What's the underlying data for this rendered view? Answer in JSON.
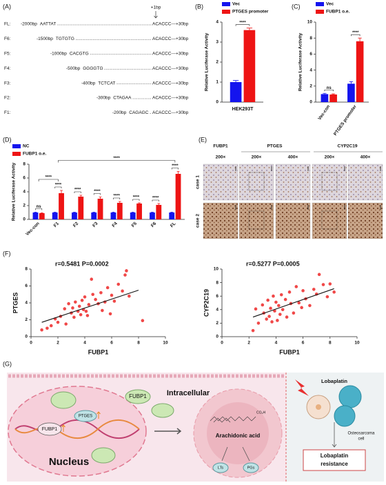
{
  "panel_labels": [
    "(A)",
    "(B)",
    "(C)",
    "(D)",
    "(E)",
    "(F)",
    "(G)"
  ],
  "promoter": {
    "marker": "+1bp",
    "rows": [
      {
        "name": "FL:",
        "start": "-2000bp",
        "seq": "AATTAT",
        "end": "ACACCC---+30bp"
      },
      {
        "name": "F6:",
        "start": "-1500bp",
        "seq": "TGTGTG",
        "end": "ACACCC---+30bp"
      },
      {
        "name": "F5:",
        "start": "-1000bp",
        "seq": "CACGTG",
        "end": "ACACCC---+30bp"
      },
      {
        "name": "F4:",
        "start": "-500bp",
        "seq": "GGGGTG",
        "end": "ACACCC---+30bp"
      },
      {
        "name": "F3:",
        "start": "-400bp",
        "seq": "TCTCAT",
        "end": "ACACCC---+30bp"
      },
      {
        "name": "F2:",
        "start": "-300bp",
        "seq": "CTAGAA",
        "end": "ACACCC---+30bp"
      },
      {
        "name": "F1:",
        "start": "-200bp",
        "seq": "CAGAGC",
        "end": "ACACCC---+30bp"
      }
    ]
  },
  "chart_data": [
    {
      "type": "bar",
      "ylabel": "Relative Luciferase Activity",
      "categories": [
        "HEK293T"
      ],
      "series": [
        {
          "name": "Vec",
          "color": "#1414ee",
          "values": [
            1.0
          ],
          "errors": [
            0.08
          ]
        },
        {
          "name": "PTGES promoter",
          "color": "#ee1414",
          "values": [
            3.6
          ],
          "errors": [
            0.1
          ]
        }
      ],
      "ylim": [
        0,
        4
      ],
      "yticks": [
        0,
        1,
        2,
        3,
        4
      ],
      "annotations": [
        "****"
      ]
    },
    {
      "type": "bar",
      "ylabel": "Relative Luciferase Activity",
      "categories": [
        "Vec-con",
        "PTGES promoter"
      ],
      "series": [
        {
          "name": "Vec",
          "color": "#1414ee",
          "values": [
            1.0,
            2.3
          ],
          "errors": [
            0.1,
            0.25
          ]
        },
        {
          "name": "FUBP1 o.e.",
          "color": "#ee1414",
          "values": [
            0.95,
            7.6
          ],
          "errors": [
            0.08,
            0.4
          ]
        }
      ],
      "ylim": [
        0,
        10
      ],
      "yticks": [
        0,
        2,
        4,
        6,
        8,
        10
      ],
      "annotations": [
        "ns",
        "****"
      ]
    },
    {
      "type": "bar",
      "ylabel": "Relative Luciferase Activity",
      "categories": [
        "Vec-con",
        "F1",
        "F2",
        "F3",
        "F4",
        "F5",
        "F6",
        "FL"
      ],
      "series": [
        {
          "name": "NC",
          "color": "#1414ee",
          "values": [
            1,
            1,
            1,
            1,
            1,
            1,
            1,
            1
          ],
          "errors": [
            0.05,
            0.05,
            0.05,
            0.05,
            0.05,
            0.05,
            0.05,
            0.05
          ]
        },
        {
          "name": "FUBP1 o.e.",
          "color": "#ee1414",
          "values": [
            0.9,
            3.8,
            3.3,
            3.0,
            2.4,
            2.3,
            2.1,
            6.6
          ],
          "errors": [
            0.05,
            0.4,
            0.2,
            0.25,
            0.2,
            0.1,
            0.2,
            0.35
          ]
        }
      ],
      "ylim": [
        0,
        8
      ],
      "yticks": [
        0,
        2,
        4,
        6,
        8
      ],
      "annotations": [
        "ns",
        "****",
        "****",
        "****",
        "****",
        "****",
        "****",
        "****"
      ],
      "comparison_labels": [
        "****",
        "****"
      ]
    },
    {
      "type": "scatter",
      "annotation": "r=0.5481   P=0.0002",
      "xlabel": "FUBP1",
      "ylabel": "PTGES",
      "color": "#f04848",
      "x": [
        0.8,
        1.2,
        1.5,
        1.8,
        2.0,
        2.2,
        2.5,
        2.6,
        2.8,
        3.0,
        3.1,
        3.2,
        3.3,
        3.5,
        3.6,
        3.7,
        3.8,
        3.9,
        4.0,
        4.1,
        4.2,
        4.3,
        4.5,
        4.6,
        4.8,
        5.0,
        5.2,
        5.3,
        5.5,
        5.7,
        5.9,
        6.0,
        6.2,
        6.5,
        6.8,
        7.0,
        7.1,
        7.3,
        8.3
      ],
      "values": [
        0.8,
        1.0,
        1.3,
        2.1,
        1.7,
        2.4,
        3.3,
        1.5,
        3.9,
        2.8,
        3.4,
        2.3,
        4.1,
        3.0,
        3.6,
        2.6,
        4.3,
        3.2,
        4.7,
        3.0,
        2.5,
        3.8,
        6.8,
        5.0,
        4.4,
        3.9,
        5.2,
        3.1,
        4.1,
        5.8,
        2.7,
        4.9,
        4.2,
        6.2,
        5.4,
        7.3,
        7.8,
        4.8,
        1.9
      ],
      "fit": {
        "x": [
          0.8,
          8.0
        ],
        "values": [
          1.7,
          5.5
        ]
      },
      "xlim": [
        0,
        10
      ],
      "xticks": [
        0,
        2,
        4,
        6,
        8,
        10
      ],
      "ylim": [
        0,
        8
      ],
      "yticks": [
        0,
        2,
        4,
        6,
        8
      ]
    },
    {
      "type": "scatter",
      "annotation": "r=0.5277   P=0.0005",
      "xlabel": "FUBP1",
      "ylabel": "CYP2C19",
      "color": "#f04848",
      "x": [
        2.3,
        2.5,
        2.7,
        3.0,
        3.1,
        3.3,
        3.4,
        3.5,
        3.6,
        3.7,
        3.8,
        3.9,
        4.0,
        4.1,
        4.2,
        4.3,
        4.4,
        4.5,
        4.7,
        4.8,
        5.0,
        5.1,
        5.3,
        5.5,
        5.7,
        5.9,
        6.0,
        6.2,
        6.5,
        6.8,
        7.0,
        7.2,
        7.5,
        7.8,
        8.0,
        8.3
      ],
      "values": [
        0.9,
        4.1,
        2.0,
        4.7,
        3.5,
        2.6,
        5.4,
        3.0,
        4.2,
        2.2,
        6.0,
        3.8,
        5.1,
        2.4,
        4.6,
        3.3,
        6.2,
        4.0,
        5.5,
        2.9,
        6.6,
        4.9,
        3.5,
        7.4,
        5.0,
        4.3,
        6.8,
        5.6,
        4.6,
        7.0,
        6.3,
        9.2,
        7.7,
        5.9,
        7.8,
        6.6
      ],
      "fit": {
        "x": [
          2.3,
          8.3
        ],
        "values": [
          2.9,
          7.1
        ]
      },
      "xlim": [
        0,
        10
      ],
      "xticks": [
        0,
        2,
        4,
        6,
        8,
        10
      ],
      "ylim": [
        0,
        10
      ],
      "yticks": [
        0,
        2,
        4,
        6,
        8,
        10
      ]
    }
  ],
  "histology": {
    "groups": [
      "FUBP1",
      "PTGES",
      "CYP2C19"
    ],
    "magnifications": [
      "200×",
      "200×",
      "400×",
      "200×",
      "400×"
    ],
    "cases": [
      "case 1",
      "case 2"
    ]
  },
  "schematic": {
    "intracellular": "Intracellular",
    "fubp1": "FUBP1",
    "fubp1_dna": "FUBP1",
    "ptges": "PTGES",
    "nucleus": "Nucleus",
    "co2h": "CO₂H",
    "arachidonic": "Arachidonic acid",
    "lts": "LTs",
    "pgs": "PGs",
    "lobaplatin": "Lobaplatin",
    "cell": [
      "Osteosarcoma",
      "cell"
    ],
    "resistance": [
      "Lobaplatin",
      "resistance"
    ]
  }
}
